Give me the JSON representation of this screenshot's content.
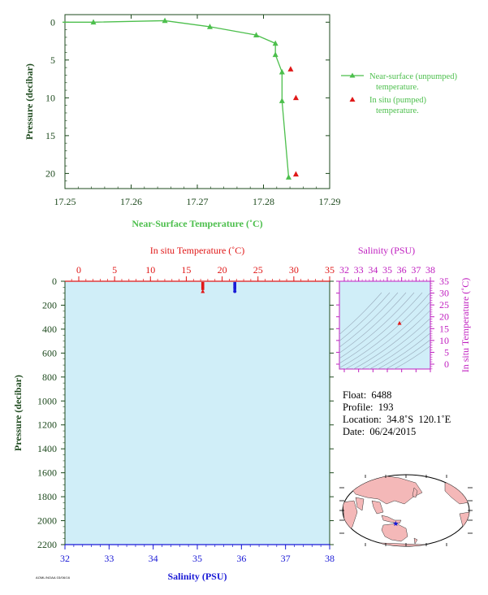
{
  "colors": {
    "near_surface": "#4cbf4c",
    "in_situ_temp": "#e01818",
    "salinity": "#1a1ad6",
    "salinity_axis": "#c020c0",
    "axis_dark": "#1e4a1e",
    "plot_fill": "#d0eef8",
    "land": "#f4b8b8"
  },
  "chart_data": [
    {
      "id": "near-surface-profile",
      "type": "line",
      "xlabel": "Near-Surface Temperature (˚C)",
      "ylabel": "Pressure (decibar)",
      "xlim": [
        17.25,
        17.29
      ],
      "ylim": [
        22,
        -1
      ],
      "x_ticks": [
        "17.25",
        "17.26",
        "17.27",
        "17.28",
        "17.29"
      ],
      "y_ticks": [
        "0",
        "5",
        "10",
        "15",
        "20"
      ],
      "series": [
        {
          "name": "Near-surface (unpumped) temperature.",
          "style": "line-triangle",
          "x": [
            17.2417,
            17.2543,
            17.2651,
            17.2719,
            17.2789,
            17.2818,
            17.2818,
            17.2828,
            17.2828,
            17.2838
          ],
          "y": [
            0.0,
            0.0,
            -0.2,
            0.6,
            1.7,
            2.8,
            4.3,
            6.6,
            10.4,
            20.5
          ]
        },
        {
          "name": "In situ (pumped) temperature.",
          "style": "triangle",
          "x": [
            17.2841,
            17.2849,
            17.2849
          ],
          "y": [
            6.2,
            10.0,
            20.1
          ]
        }
      ],
      "legend_position": "right"
    },
    {
      "id": "deep-profile",
      "type": "scatter",
      "top_xlabel": "In situ Temperature (˚C)",
      "bottom_xlabel": "Salinity (PSU)",
      "ylabel": "Pressure (decibar)",
      "temp_lim": [
        -2,
        35
      ],
      "salinity_lim": [
        32,
        38
      ],
      "ylim": [
        0,
        2200
      ],
      "temp_ticks": [
        "0",
        "5",
        "10",
        "15",
        "20",
        "25",
        "30",
        "35"
      ],
      "salinity_ticks": [
        "32",
        "33",
        "34",
        "35",
        "36",
        "37",
        "38"
      ],
      "y_ticks": [
        "0",
        "200",
        "400",
        "600",
        "800",
        "1000",
        "1200",
        "1400",
        "1600",
        "1800",
        "2000",
        "2200"
      ],
      "temperature_points": {
        "x": [
          17.3,
          17.3,
          17.3,
          17.3
        ],
        "y": [
          20,
          40,
          60,
          85
        ]
      },
      "salinity_points": {
        "x": [
          35.85,
          35.85,
          35.85,
          35.85
        ],
        "y": [
          20,
          40,
          60,
          85
        ]
      }
    },
    {
      "id": "ts-diagram",
      "type": "scatter",
      "top_xlabel": "Salinity (PSU)",
      "right_ylabel": "In situ Temperature (˚C)",
      "xlim": [
        32,
        38
      ],
      "ylim": [
        -2,
        35
      ],
      "x_ticks": [
        "32",
        "33",
        "34",
        "35",
        "36",
        "37",
        "38"
      ],
      "y_ticks": [
        "0",
        "5",
        "10",
        "15",
        "20",
        "25",
        "30",
        "35"
      ],
      "points": {
        "x": [
          35.85
        ],
        "y": [
          17.3
        ]
      }
    }
  ],
  "info": {
    "float": "Float:  6488",
    "profile": "Profile:  193",
    "location": "Location:  34.8˚S  120.1˚E",
    "date": "Date:  06/24/2015"
  },
  "map": {
    "marker_icon": "star-icon",
    "marker_lat": -34.8,
    "marker_lon": 120.1
  },
  "fine_print": "AOML/NOAA 03/06/16"
}
